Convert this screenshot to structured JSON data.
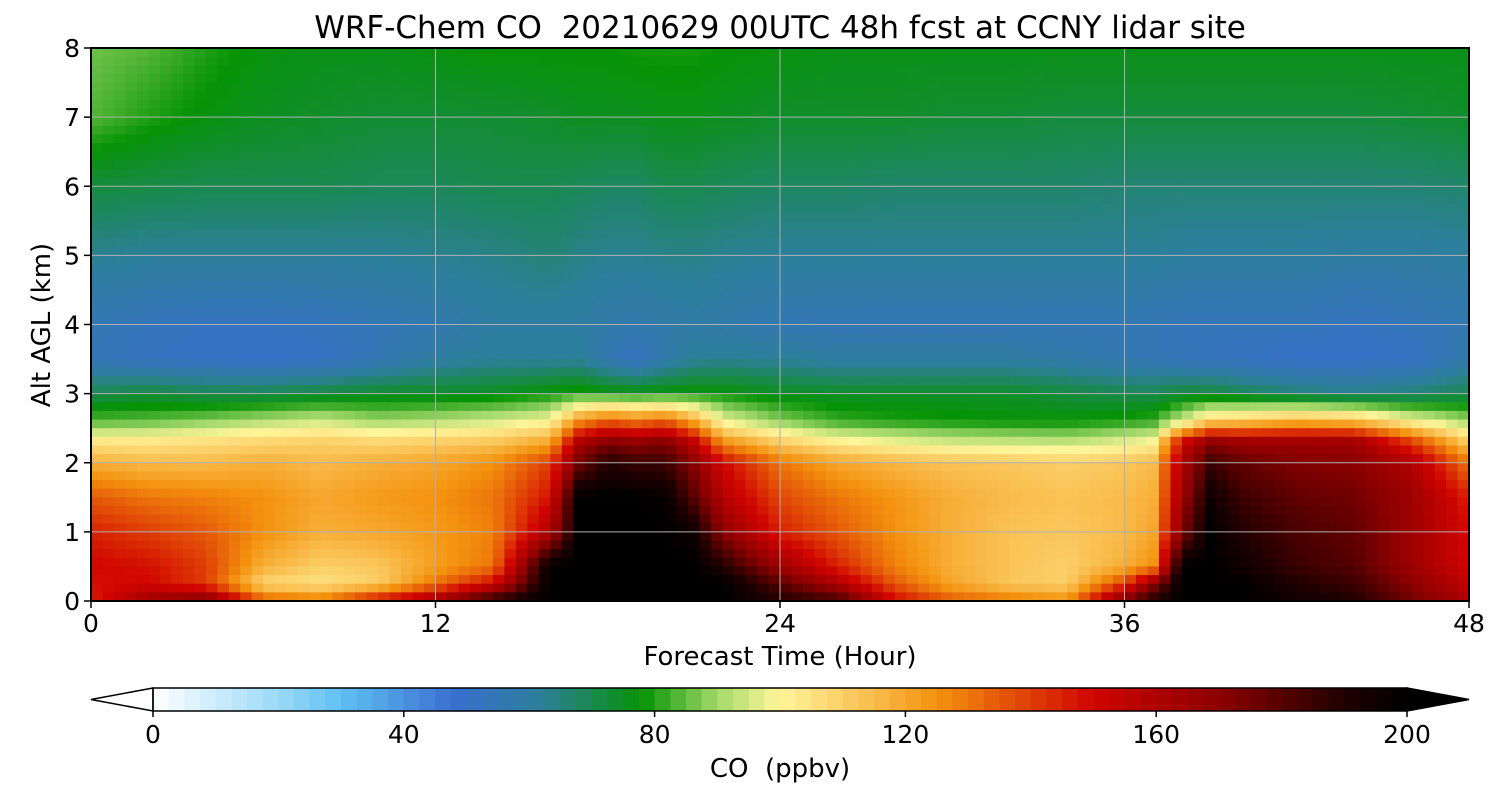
{
  "chart_data": {
    "type": "heatmap",
    "title": "WRF-Chem CO  20210629 00UTC 48h fcst at CCNY lidar site",
    "xlabel": "Forecast Time (Hour)",
    "ylabel": "Alt AGL (km)",
    "xlim": [
      0,
      48
    ],
    "ylim": [
      0,
      8
    ],
    "xticks": [
      0,
      12,
      24,
      36,
      48
    ],
    "yticks": [
      0,
      1,
      2,
      3,
      4,
      5,
      6,
      7,
      8
    ],
    "grid": true,
    "colorbar": {
      "label": "CO  (ppbv)",
      "range": [
        0,
        200
      ],
      "ticks": [
        0,
        40,
        80,
        120,
        160,
        200
      ],
      "extend": "both",
      "stops": [
        {
          "value": 0,
          "color": "#ffffff"
        },
        {
          "value": 20,
          "color": "#9ad9f7"
        },
        {
          "value": 30,
          "color": "#5fc0f2"
        },
        {
          "value": 48,
          "color": "#3a6fd0"
        },
        {
          "value": 62,
          "color": "#2d7f9a"
        },
        {
          "value": 78,
          "color": "#069305"
        },
        {
          "value": 90,
          "color": "#a3d96a"
        },
        {
          "value": 100,
          "color": "#fff59a"
        },
        {
          "value": 110,
          "color": "#fbcf68"
        },
        {
          "value": 125,
          "color": "#f4920e"
        },
        {
          "value": 150,
          "color": "#d00400"
        },
        {
          "value": 170,
          "color": "#8c0000"
        },
        {
          "value": 190,
          "color": "#200000"
        },
        {
          "value": 200,
          "color": "#000000"
        }
      ]
    },
    "x": [
      0,
      2,
      4,
      6,
      8,
      10,
      12,
      14,
      16,
      17,
      18,
      19,
      20,
      21,
      22,
      24,
      26,
      28,
      30,
      32,
      34,
      36,
      37,
      38,
      39,
      40,
      42,
      44,
      46,
      48
    ],
    "y": [
      0,
      0.25,
      0.5,
      1,
      1.5,
      2,
      2.3,
      2.6,
      3,
      3.5,
      4,
      5,
      6,
      7,
      8
    ],
    "z": [
      [
        145,
        165,
        175,
        135,
        130,
        150,
        165,
        190,
        200,
        200,
        200,
        200,
        200,
        200,
        200,
        190,
        185,
        150,
        135,
        130,
        125,
        175,
        190,
        200,
        200,
        200,
        195,
        190,
        175,
        160
      ],
      [
        148,
        150,
        140,
        108,
        105,
        110,
        130,
        150,
        200,
        200,
        200,
        200,
        200,
        200,
        200,
        180,
        160,
        135,
        120,
        112,
        110,
        140,
        170,
        200,
        200,
        200,
        190,
        185,
        170,
        155
      ],
      [
        150,
        148,
        140,
        118,
        110,
        112,
        122,
        130,
        200,
        200,
        200,
        200,
        200,
        200,
        190,
        165,
        145,
        128,
        118,
        113,
        110,
        118,
        125,
        200,
        200,
        195,
        185,
        180,
        165,
        150
      ],
      [
        145,
        140,
        135,
        125,
        118,
        120,
        123,
        128,
        160,
        200,
        200,
        200,
        200,
        195,
        170,
        145,
        135,
        125,
        118,
        113,
        112,
        115,
        120,
        172,
        200,
        190,
        182,
        178,
        165,
        148
      ],
      [
        135,
        130,
        128,
        125,
        120,
        123,
        125,
        130,
        148,
        200,
        200,
        200,
        198,
        180,
        158,
        138,
        130,
        124,
        118,
        115,
        113,
        115,
        118,
        165,
        195,
        185,
        178,
        175,
        165,
        145
      ],
      [
        118,
        115,
        115,
        118,
        115,
        118,
        120,
        125,
        140,
        175,
        190,
        185,
        185,
        170,
        150,
        130,
        120,
        116,
        113,
        112,
        110,
        112,
        115,
        160,
        185,
        178,
        172,
        170,
        160,
        130
      ],
      [
        104,
        104,
        106,
        108,
        110,
        108,
        110,
        112,
        120,
        160,
        172,
        168,
        172,
        155,
        125,
        110,
        102,
        98,
        95,
        94,
        93,
        97,
        100,
        150,
        170,
        165,
        165,
        165,
        140,
        110
      ],
      [
        84,
        85,
        88,
        92,
        95,
        90,
        92,
        95,
        100,
        125,
        135,
        130,
        135,
        120,
        98,
        88,
        82,
        80,
        79,
        78,
        78,
        80,
        82,
        95,
        110,
        112,
        118,
        115,
        100,
        90
      ],
      [
        70,
        72,
        70,
        70,
        72,
        74,
        74,
        75,
        78,
        80,
        78,
        77,
        78,
        78,
        78,
        75,
        74,
        74,
        74,
        74,
        72,
        70,
        70,
        72,
        72,
        70,
        66,
        64,
        66,
        70
      ],
      [
        55,
        52,
        51,
        50,
        51,
        55,
        60,
        62,
        62,
        62,
        56,
        52,
        58,
        62,
        63,
        62,
        60,
        60,
        60,
        60,
        58,
        56,
        55,
        54,
        53,
        52,
        50,
        50,
        51,
        58
      ],
      [
        56,
        53,
        52,
        52,
        53,
        55,
        57,
        60,
        60,
        60,
        58,
        57,
        58,
        59,
        58,
        56,
        55,
        55,
        55,
        55,
        55,
        55,
        55,
        54,
        54,
        54,
        54,
        52,
        54,
        56
      ],
      [
        63,
        62,
        62,
        62,
        62,
        62,
        63,
        64,
        66,
        64,
        63,
        63,
        64,
        64,
        63,
        62,
        62,
        62,
        62,
        62,
        62,
        62,
        62,
        61,
        61,
        61,
        61,
        60,
        60,
        61
      ],
      [
        72,
        71,
        70,
        70,
        70,
        69,
        69,
        70,
        70,
        69,
        68,
        68,
        70,
        70,
        69,
        68,
        68,
        67,
        67,
        67,
        67,
        66,
        66,
        66,
        66,
        66,
        66,
        66,
        66,
        67
      ],
      [
        84,
        80,
        77,
        75,
        74,
        73,
        73,
        73,
        74,
        75,
        75,
        75,
        76,
        76,
        75,
        74,
        74,
        74,
        73,
        73,
        72,
        72,
        72,
        72,
        72,
        72,
        72,
        72,
        73,
        74
      ],
      [
        86,
        84,
        80,
        77,
        76,
        76,
        77,
        78,
        78,
        78,
        78,
        79,
        79,
        79,
        78,
        77,
        76,
        76,
        76,
        76,
        76,
        76,
        76,
        76,
        76,
        76,
        76,
        76,
        76,
        76
      ]
    ]
  }
}
